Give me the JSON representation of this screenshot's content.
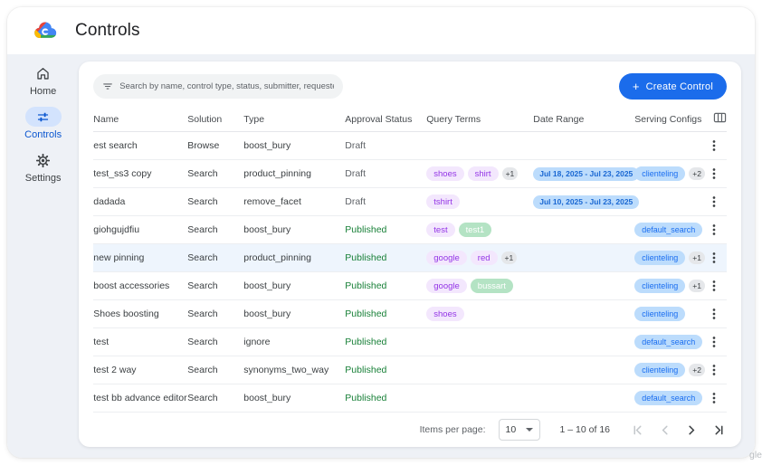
{
  "header": {
    "title": "Controls"
  },
  "sidebar": {
    "items": [
      {
        "label": "Home"
      },
      {
        "label": "Controls"
      },
      {
        "label": "Settings"
      }
    ]
  },
  "toolbar": {
    "search_placeholder": "Search by name, control type, status, submitter, requested on",
    "create_label": "Create Control",
    "create_plus": "+"
  },
  "table": {
    "columns": [
      "Name",
      "Solution",
      "Type",
      "Approval Status",
      "Query Terms",
      "Date Range",
      "Serving Configs"
    ],
    "rows": [
      {
        "name": "est search",
        "solution": "Browse",
        "type": "boost_bury",
        "status": "Draft",
        "status_kind": "draft",
        "query_terms": [],
        "query_more": null,
        "date_range": "",
        "serving_configs": [],
        "serving_more": null,
        "highlighted": false
      },
      {
        "name": "test_ss3 copy",
        "solution": "Search",
        "type": "product_pinning",
        "status": "Draft",
        "status_kind": "draft",
        "query_terms": [
          {
            "label": "shoes",
            "color": "purple"
          },
          {
            "label": "shirt",
            "color": "purple"
          }
        ],
        "query_more": "+1",
        "date_range": "Jul 18, 2025 - Jul 23, 2025",
        "serving_configs": [
          "clienteling"
        ],
        "serving_more": "+2",
        "highlighted": false
      },
      {
        "name": "dadada",
        "solution": "Search",
        "type": "remove_facet",
        "status": "Draft",
        "status_kind": "draft",
        "query_terms": [
          {
            "label": "tshirt",
            "color": "purple"
          }
        ],
        "query_more": null,
        "date_range": "Jul 10, 2025 - Jul 23, 2025",
        "serving_configs": [],
        "serving_more": null,
        "highlighted": false
      },
      {
        "name": "giohgujdfiu",
        "solution": "Search",
        "type": "boost_bury",
        "status": "Published",
        "status_kind": "published",
        "query_terms": [
          {
            "label": "test",
            "color": "purple"
          },
          {
            "label": "test1",
            "color": "green"
          }
        ],
        "query_more": null,
        "date_range": "",
        "serving_configs": [
          "default_search"
        ],
        "serving_more": null,
        "highlighted": false
      },
      {
        "name": "new pinning",
        "solution": "Search",
        "type": "product_pinning",
        "status": "Published",
        "status_kind": "published",
        "query_terms": [
          {
            "label": "google",
            "color": "purple"
          },
          {
            "label": "red",
            "color": "purple"
          }
        ],
        "query_more": "+1",
        "date_range": "",
        "serving_configs": [
          "clienteling"
        ],
        "serving_more": "+1",
        "highlighted": true
      },
      {
        "name": "boost accessories",
        "solution": "Search",
        "type": "boost_bury",
        "status": "Published",
        "status_kind": "published",
        "query_terms": [
          {
            "label": "google",
            "color": "purple"
          },
          {
            "label": "bussart",
            "color": "green"
          }
        ],
        "query_more": null,
        "date_range": "",
        "serving_configs": [
          "clienteling"
        ],
        "serving_more": "+1",
        "highlighted": false
      },
      {
        "name": "Shoes boosting",
        "solution": "Search",
        "type": "boost_bury",
        "status": "Published",
        "status_kind": "published",
        "query_terms": [
          {
            "label": "shoes",
            "color": "purple"
          }
        ],
        "query_more": null,
        "date_range": "",
        "serving_configs": [
          "clienteling"
        ],
        "serving_more": null,
        "highlighted": false
      },
      {
        "name": "test",
        "solution": "Search",
        "type": "ignore",
        "status": "Published",
        "status_kind": "published",
        "query_terms": [],
        "query_more": null,
        "date_range": "",
        "serving_configs": [
          "default_search"
        ],
        "serving_more": null,
        "highlighted": false
      },
      {
        "name": "test 2 way",
        "solution": "Search",
        "type": "synonyms_two_way",
        "status": "Published",
        "status_kind": "published",
        "query_terms": [],
        "query_more": null,
        "date_range": "",
        "serving_configs": [
          "clienteling"
        ],
        "serving_more": "+2",
        "highlighted": false
      },
      {
        "name": "test bb advance editor",
        "solution": "Search",
        "type": "boost_bury",
        "status": "Published",
        "status_kind": "published",
        "query_terms": [],
        "query_more": null,
        "date_range": "",
        "serving_configs": [
          "default_search"
        ],
        "serving_more": null,
        "highlighted": false
      }
    ]
  },
  "pagination": {
    "items_per_page_label": "Items per page:",
    "page_size": "10",
    "range": "1 – 10 of 16"
  },
  "watermark": "gle",
  "colors": {
    "accent_blue": "#1b6ceb",
    "active_pill": "#d3e3fd",
    "active_text": "#0b57d0",
    "published_green": "#188038",
    "draft_gray": "#5f6368",
    "chip_purple_bg": "#f3e7fd",
    "chip_purple_text": "#9334e6",
    "chip_green_bg": "#b4e3c4",
    "chip_blue_bg": "#bcdcfc",
    "chip_blue_text": "#1967d2",
    "content_bg": "#eef1f6"
  }
}
